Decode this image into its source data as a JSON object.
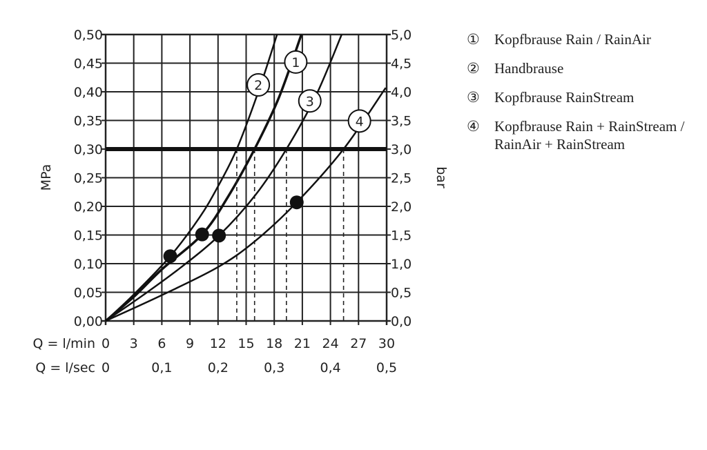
{
  "chart_data": {
    "type": "line",
    "xlabel": "Q = l/min",
    "xlabel2": "Q = l/sec",
    "ylabel": "MPa",
    "ylabel_right": "bar",
    "xlim": [
      0,
      30
    ],
    "ylim": [
      0,
      0.5
    ],
    "grid": true,
    "x_ticks": [
      "0",
      "3",
      "6",
      "9",
      "12",
      "15",
      "18",
      "21",
      "24",
      "27",
      "30"
    ],
    "x2_ticks": [
      {
        "at": 0,
        "label": "0"
      },
      {
        "at": 6,
        "label": "0,1"
      },
      {
        "at": 12,
        "label": "0,2"
      },
      {
        "at": 18,
        "label": "0,3"
      },
      {
        "at": 24,
        "label": "0,4"
      },
      {
        "at": 30,
        "label": "0,5"
      }
    ],
    "y_ticks": [
      "0,00",
      "0,05",
      "0,10",
      "0,15",
      "0,20",
      "0,25",
      "0,30",
      "0,35",
      "0,40",
      "0,45",
      "0,50"
    ],
    "y_right_ticks": [
      "0,0",
      "0,5",
      "1,0",
      "1,5",
      "2,0",
      "2,5",
      "3,0",
      "3,5",
      "4,0",
      "4,5",
      "5,0"
    ],
    "reference_line": {
      "y": 0.3
    },
    "series": [
      {
        "name": "1",
        "points": [
          [
            0,
            0
          ],
          [
            3,
            0.042
          ],
          [
            6,
            0.09
          ],
          [
            10.3,
            0.151
          ],
          [
            13,
            0.215
          ],
          [
            15.9,
            0.3
          ],
          [
            18.5,
            0.39
          ],
          [
            20.9,
            0.5
          ]
        ],
        "label_at": [
          20.3,
          0.452
        ],
        "thick": true,
        "drop_at": 15.9
      },
      {
        "name": "2",
        "points": [
          [
            0,
            0
          ],
          [
            3,
            0.046
          ],
          [
            6.9,
            0.113
          ],
          [
            10,
            0.18
          ],
          [
            12,
            0.235
          ],
          [
            14,
            0.3
          ],
          [
            16.3,
            0.4
          ],
          [
            18.3,
            0.5
          ]
        ],
        "label_at": [
          16.3,
          0.412
        ],
        "thick": false,
        "drop_at": 14.0
      },
      {
        "name": "3",
        "points": [
          [
            0,
            0
          ],
          [
            4,
            0.045
          ],
          [
            8,
            0.093
          ],
          [
            12.1,
            0.149
          ],
          [
            16,
            0.22
          ],
          [
            19.3,
            0.3
          ],
          [
            22.5,
            0.395
          ],
          [
            25.2,
            0.5
          ]
        ],
        "label_at": [
          21.8,
          0.384
        ],
        "thick": false,
        "drop_at": 19.3
      },
      {
        "name": "4",
        "points": [
          [
            0,
            0
          ],
          [
            6,
            0.045
          ],
          [
            12,
            0.094
          ],
          [
            16,
            0.14
          ],
          [
            20.4,
            0.207
          ],
          [
            25.4,
            0.3
          ],
          [
            29.9,
            0.407
          ]
        ],
        "label_at": [
          27.1,
          0.349
        ],
        "thick": false,
        "drop_at": 25.4
      }
    ],
    "markers": [
      [
        6.9,
        0.113
      ],
      [
        10.3,
        0.151
      ],
      [
        12.1,
        0.149
      ],
      [
        20.4,
        0.207
      ]
    ]
  },
  "legend": [
    {
      "num": "①",
      "text": "Kopfbrause Rain / RainAir"
    },
    {
      "num": "②",
      "text": "Handbrause"
    },
    {
      "num": "③",
      "text": "Kopfbrause RainStream"
    },
    {
      "num": "④",
      "text": "Kopfbrause Rain + RainStream / RainAir + RainStream"
    }
  ]
}
